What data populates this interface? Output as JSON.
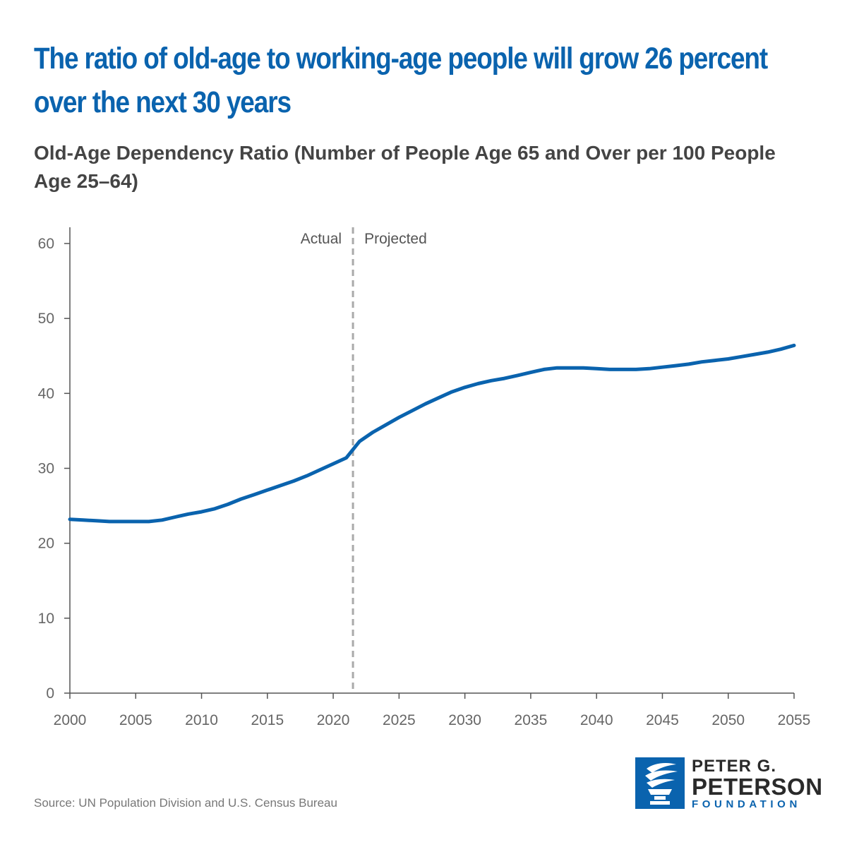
{
  "title": "The ratio of old-age to working-age people will grow 26 percent over the next 30 years",
  "subtitle": "Old-Age Dependency Ratio (Number of People Age 65 and Over per 100 People Age 25–64)",
  "source": "Source: UN Population Division and U.S. Census Bureau",
  "logo": {
    "line1": "PETER G.",
    "line2": "PETERSON",
    "line3": "FOUNDATION",
    "color": "#0a63ae"
  },
  "chart_data": {
    "type": "line",
    "title": "The ratio of old-age to working-age people will grow 26 percent over the next 30 years",
    "subtitle": "Old-Age Dependency Ratio (Number of People Age 65 and Over per 100 People Age 25–64)",
    "xlabel": "",
    "ylabel": "",
    "xlim": [
      2000,
      2055
    ],
    "ylim": [
      0,
      60
    ],
    "x_ticks": [
      "2000",
      "2005",
      "2010",
      "2015",
      "2020",
      "2025",
      "2030",
      "2035",
      "2040",
      "2045",
      "2050",
      "2055"
    ],
    "y_ticks": [
      "0",
      "10",
      "20",
      "30",
      "40",
      "50",
      "60"
    ],
    "grid": false,
    "line_color": "#0a63ae",
    "divider": {
      "x": 2021.5,
      "left_label": "Actual",
      "right_label": "Projected",
      "style": "dashed"
    },
    "series": [
      {
        "x": [
          2000,
          2001,
          2002,
          2003,
          2004,
          2005,
          2006,
          2007,
          2008,
          2009,
          2010,
          2011,
          2012,
          2013,
          2014,
          2015,
          2016,
          2017,
          2018,
          2019,
          2020,
          2021,
          2022,
          2023,
          2024,
          2025,
          2026,
          2027,
          2028,
          2029,
          2030,
          2031,
          2032,
          2033,
          2034,
          2035,
          2036,
          2037,
          2038,
          2039,
          2040,
          2041,
          2042,
          2043,
          2044,
          2045,
          2046,
          2047,
          2048,
          2049,
          2050,
          2051,
          2052,
          2053,
          2054,
          2055
        ],
        "values": [
          23.2,
          23.1,
          23.0,
          22.9,
          22.9,
          22.9,
          22.9,
          23.1,
          23.5,
          23.9,
          24.2,
          24.6,
          25.2,
          25.9,
          26.5,
          27.1,
          27.7,
          28.3,
          29.0,
          29.8,
          30.6,
          31.4,
          33.6,
          34.8,
          35.8,
          36.8,
          37.7,
          38.6,
          39.4,
          40.2,
          40.8,
          41.3,
          41.7,
          42.0,
          42.4,
          42.8,
          43.2,
          43.4,
          43.4,
          43.4,
          43.3,
          43.2,
          43.2,
          43.2,
          43.3,
          43.5,
          43.7,
          43.9,
          44.2,
          44.4,
          44.6,
          44.9,
          45.2,
          45.5,
          45.9,
          46.4
        ]
      }
    ]
  }
}
